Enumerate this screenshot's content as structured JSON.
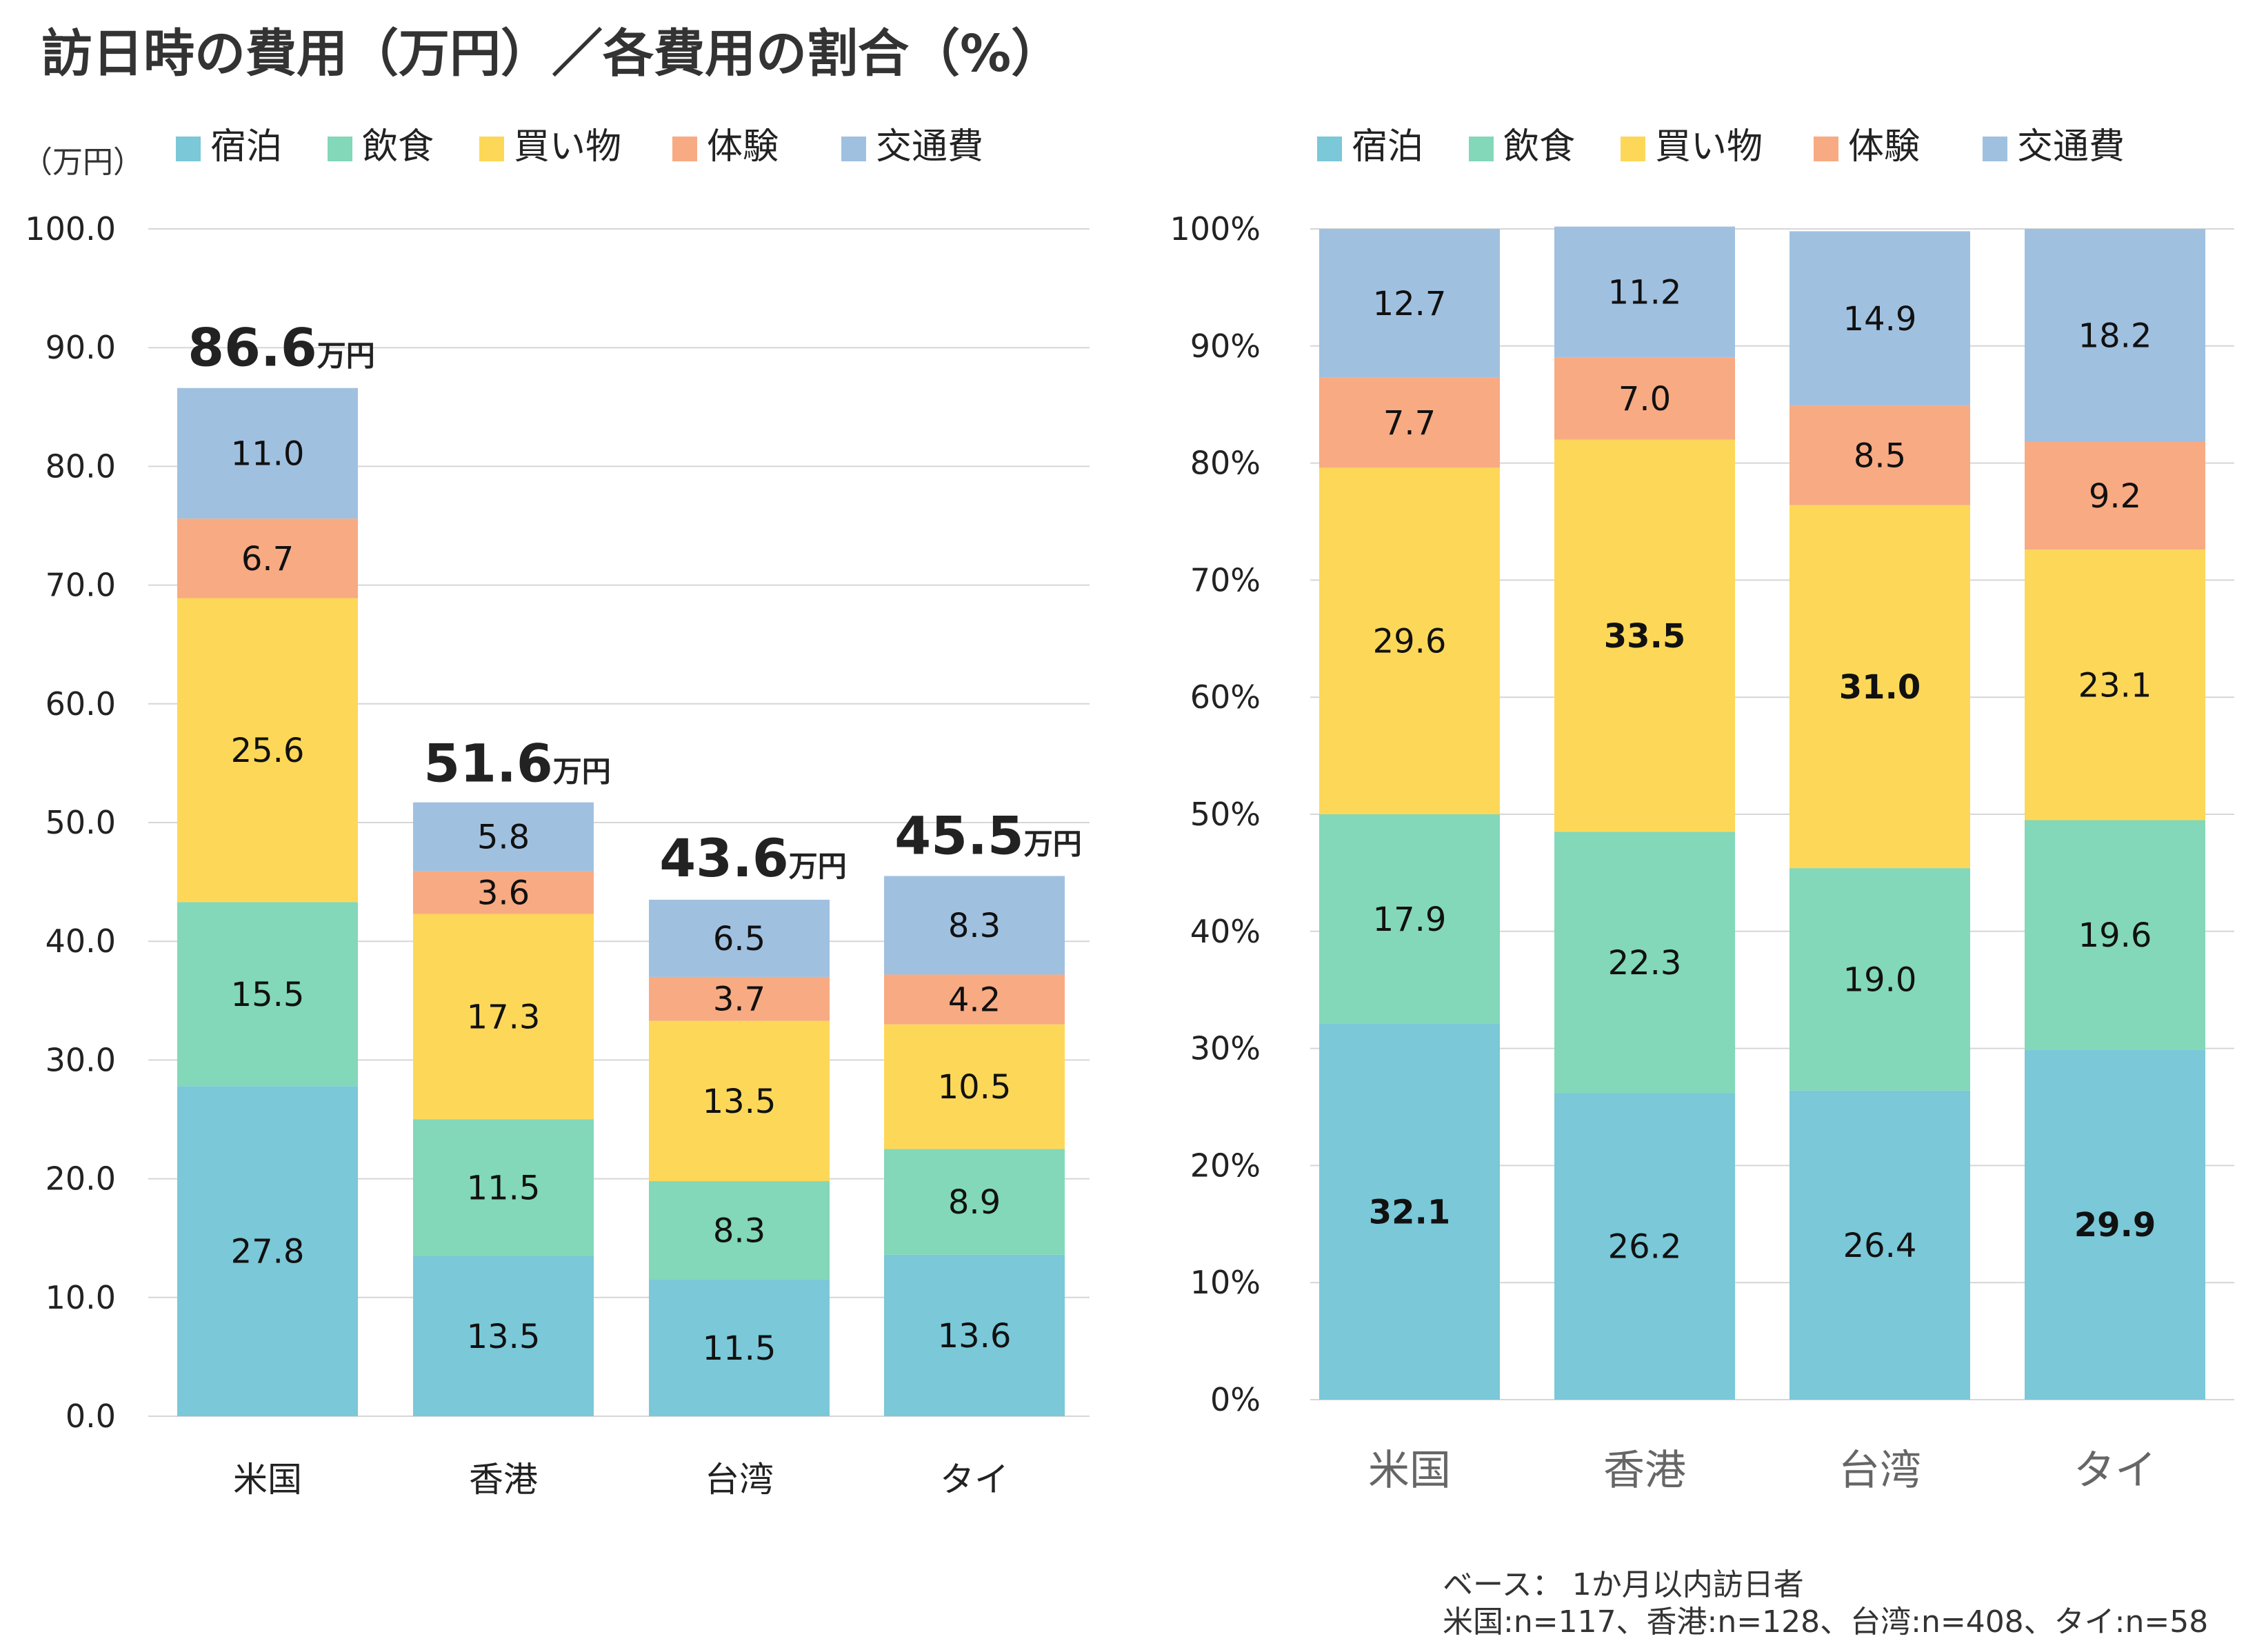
{
  "title": "訪日時の費用（万円）／各費用の割合（%）",
  "footnote": {
    "line1": "ベース： 1か月以内訪日者",
    "line2": "米国:n=117、香港:n=128、台湾:n=408、タイ:n=58"
  },
  "chart_data": [
    {
      "type": "bar",
      "stacked": true,
      "ylabel": "（万円）",
      "ylim": [
        0,
        100
      ],
      "yticks": [
        "0.0",
        "10.0",
        "20.0",
        "30.0",
        "40.0",
        "50.0",
        "60.0",
        "70.0",
        "80.0",
        "90.0",
        "100.0"
      ],
      "grid": true,
      "legend_position": "top",
      "categories": [
        "米国",
        "香港",
        "台湾",
        "タイ"
      ],
      "series": [
        {
          "name": "宿泊",
          "color": "#7AC8D8",
          "values": [
            27.8,
            13.5,
            11.5,
            13.6
          ],
          "labels": [
            "27.8",
            "13.5",
            "11.5",
            "13.6"
          ],
          "bold": [
            false,
            false,
            false,
            false
          ]
        },
        {
          "name": "飲食",
          "color": "#82D8B8",
          "values": [
            15.5,
            11.5,
            8.3,
            8.9
          ],
          "labels": [
            "15.5",
            "11.5",
            "8.3",
            "8.9"
          ],
          "bold": [
            false,
            false,
            false,
            false
          ]
        },
        {
          "name": "買い物",
          "color": "#FDD858",
          "values": [
            25.6,
            17.3,
            13.5,
            10.5
          ],
          "labels": [
            "25.6",
            "17.3",
            "13.5",
            "10.5"
          ],
          "bold": [
            false,
            false,
            false,
            false
          ]
        },
        {
          "name": "体験",
          "color": "#F8AA82",
          "values": [
            6.7,
            3.6,
            3.7,
            4.2
          ],
          "labels": [
            "6.7",
            "3.6",
            "3.7",
            "4.2"
          ],
          "bold": [
            false,
            false,
            false,
            false
          ]
        },
        {
          "name": "交通費",
          "color": "#A0C0E0",
          "values": [
            11.0,
            5.8,
            6.5,
            8.3
          ],
          "labels": [
            "11.0",
            "5.8",
            "6.5",
            "8.3"
          ],
          "bold": [
            false,
            false,
            false,
            false
          ]
        }
      ],
      "totals": {
        "values": [
          86.6,
          51.6,
          43.6,
          45.5
        ],
        "labels": [
          "86.6",
          "51.6",
          "43.6",
          "45.5"
        ],
        "unit": "万円"
      }
    },
    {
      "type": "bar",
      "stacked": true,
      "percent": true,
      "ylim": [
        0,
        100
      ],
      "yticks": [
        "0%",
        "10%",
        "20%",
        "30%",
        "40%",
        "50%",
        "60%",
        "70%",
        "80%",
        "90%",
        "100%"
      ],
      "grid": true,
      "legend_position": "top",
      "categories": [
        "米国",
        "香港",
        "台湾",
        "タイ"
      ],
      "series": [
        {
          "name": "宿泊",
          "color": "#7AC8D8",
          "values": [
            32.1,
            26.2,
            26.4,
            29.9
          ],
          "labels": [
            "32.1",
            "26.2",
            "26.4",
            "29.9"
          ],
          "bold": [
            true,
            false,
            false,
            true
          ]
        },
        {
          "name": "飲食",
          "color": "#82D8B8",
          "values": [
            17.9,
            22.3,
            19.0,
            19.6
          ],
          "labels": [
            "17.9",
            "22.3",
            "19.0",
            "19.6"
          ],
          "bold": [
            false,
            false,
            false,
            false
          ]
        },
        {
          "name": "買い物",
          "color": "#FDD858",
          "values": [
            29.6,
            33.5,
            31.0,
            23.1
          ],
          "labels": [
            "29.6",
            "33.5",
            "31.0",
            "23.1"
          ],
          "bold": [
            false,
            true,
            true,
            false
          ]
        },
        {
          "name": "体験",
          "color": "#F8AA82",
          "values": [
            7.7,
            7.0,
            8.5,
            9.2
          ],
          "labels": [
            "7.7",
            "7.0",
            "8.5",
            "9.2"
          ],
          "bold": [
            false,
            false,
            false,
            false
          ]
        },
        {
          "name": "交通費",
          "color": "#A0C0E0",
          "values": [
            12.7,
            11.2,
            14.9,
            18.2
          ],
          "labels": [
            "12.7",
            "11.2",
            "14.9",
            "18.2"
          ],
          "bold": [
            false,
            false,
            false,
            false
          ]
        }
      ]
    }
  ]
}
